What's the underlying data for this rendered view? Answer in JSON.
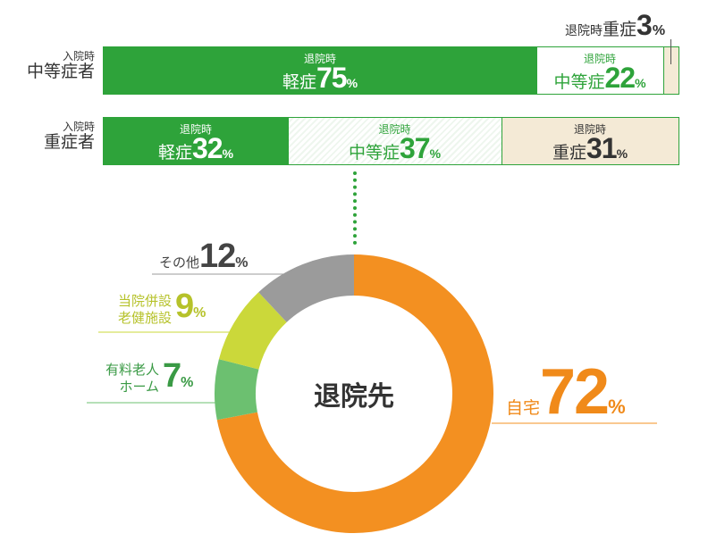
{
  "rows": [
    {
      "label_small": "入院時",
      "label_big": "中等症者",
      "segments": [
        {
          "small": "退院時",
          "big": "軽症",
          "value": 75
        },
        {
          "small": "退院時",
          "big": "中等症",
          "value": 22
        },
        {
          "small": "退院時",
          "big": "重症",
          "value": 3
        }
      ]
    },
    {
      "label_small": "入院時",
      "label_big": "重症者",
      "segments": [
        {
          "small": "退院時",
          "big": "軽症",
          "value": 32
        },
        {
          "small": "退院時",
          "big": "中等症",
          "value": 37
        },
        {
          "small": "退院時",
          "big": "重症",
          "value": 31
        }
      ]
    }
  ],
  "percent_sign": "%",
  "donut": {
    "center_label": "退院先",
    "slices": [
      {
        "label_lines": [
          "自宅"
        ],
        "value": 72,
        "color": "#f39021"
      },
      {
        "label_lines": [
          "有料老人",
          "ホーム"
        ],
        "value": 7,
        "color": "#6cc070"
      },
      {
        "label_lines": [
          "当院併設",
          "老健施設"
        ],
        "value": 9,
        "color": "#cbd83a"
      },
      {
        "label_lines": [
          "その他"
        ],
        "value": 12,
        "color": "#9b9b9b"
      }
    ]
  },
  "colors": {
    "green": "#2ea33a",
    "severe_fill": "#f4ead6",
    "dark_text": "#333333",
    "home_label": "#f08a1a",
    "yurou_label": "#3a9a45",
    "touin_label": "#b6c22a",
    "other_label": "#444444"
  },
  "chart_data": [
    {
      "type": "bar",
      "stacked": true,
      "orientation": "horizontal",
      "categories": [
        "入院時 中等症者",
        "入院時 重症者"
      ],
      "series": [
        {
          "name": "退院時 軽症",
          "values": [
            75,
            32
          ]
        },
        {
          "name": "退院時 中等症",
          "values": [
            22,
            37
          ]
        },
        {
          "name": "退院時 重症",
          "values": [
            3,
            31
          ]
        }
      ]
    },
    {
      "type": "pie",
      "title": "退院先",
      "categories": [
        "自宅",
        "有料老人ホーム",
        "当院併設老健施設",
        "その他"
      ],
      "values": [
        72,
        7,
        9,
        12
      ]
    }
  ]
}
